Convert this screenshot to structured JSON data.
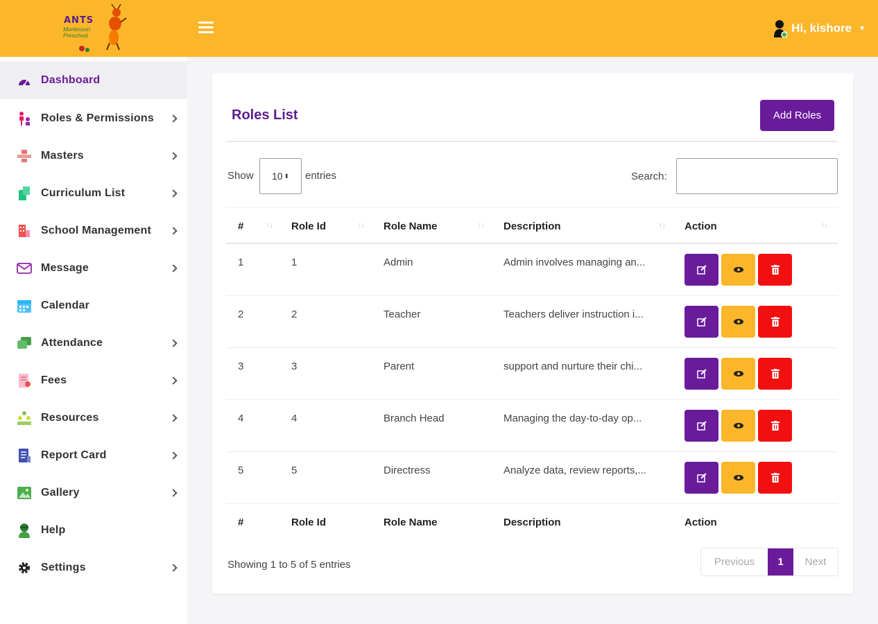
{
  "header": {
    "logo_text": "ANTS",
    "logo_sub_1": "Montessori",
    "logo_sub_2": "Preschool",
    "greeting": "Hi, kishore"
  },
  "sidebar": {
    "items": [
      {
        "label": "Dashboard",
        "icon": "dashboard-icon"
      },
      {
        "label": "Roles & Permissions",
        "icon": "roles-icon"
      },
      {
        "label": "Masters",
        "icon": "masters-icon"
      },
      {
        "label": "Curriculum List",
        "icon": "curriculum-icon"
      },
      {
        "label": "School Management",
        "icon": "school-icon"
      },
      {
        "label": "Message",
        "icon": "envelope-icon"
      },
      {
        "label": "Calendar",
        "icon": "calendar-icon"
      },
      {
        "label": "Attendance",
        "icon": "attendance-icon"
      },
      {
        "label": "Fees",
        "icon": "fees-icon"
      },
      {
        "label": "Resources",
        "icon": "resources-icon"
      },
      {
        "label": "Report Card",
        "icon": "report-card-icon"
      },
      {
        "label": "Gallery",
        "icon": "gallery-icon"
      },
      {
        "label": "Help",
        "icon": "help-icon"
      },
      {
        "label": "Settings",
        "icon": "gear-icon"
      }
    ]
  },
  "main": {
    "title": "Roles List",
    "add_button": "Add Roles",
    "show_label": "Show",
    "page_length": "10",
    "entries_label": "entries",
    "search_label": "Search:",
    "search_value": "",
    "columns": [
      "#",
      "Role Id",
      "Role Name",
      "Description",
      "Action"
    ],
    "rows": [
      {
        "num": "1",
        "role_id": "1",
        "role_name": "Admin",
        "description": "Admin involves managing an..."
      },
      {
        "num": "2",
        "role_id": "2",
        "role_name": "Teacher",
        "description": "Teachers deliver instruction i..."
      },
      {
        "num": "3",
        "role_id": "3",
        "role_name": "Parent",
        "description": "support and nurture their chi..."
      },
      {
        "num": "4",
        "role_id": "4",
        "role_name": "Branch Head",
        "description": "Managing the day-to-day op..."
      },
      {
        "num": "5",
        "role_id": "5",
        "role_name": "Directress",
        "description": "Analyze data, review reports,..."
      }
    ],
    "info": "Showing 1 to 5 of 5 entries",
    "pagination": {
      "previous": "Previous",
      "current": "1",
      "next": "Next"
    }
  },
  "colors": {
    "header": "#fbb62a",
    "primary": "#6a1b9a",
    "view": "#fbb62a",
    "delete": "#f20f10"
  }
}
